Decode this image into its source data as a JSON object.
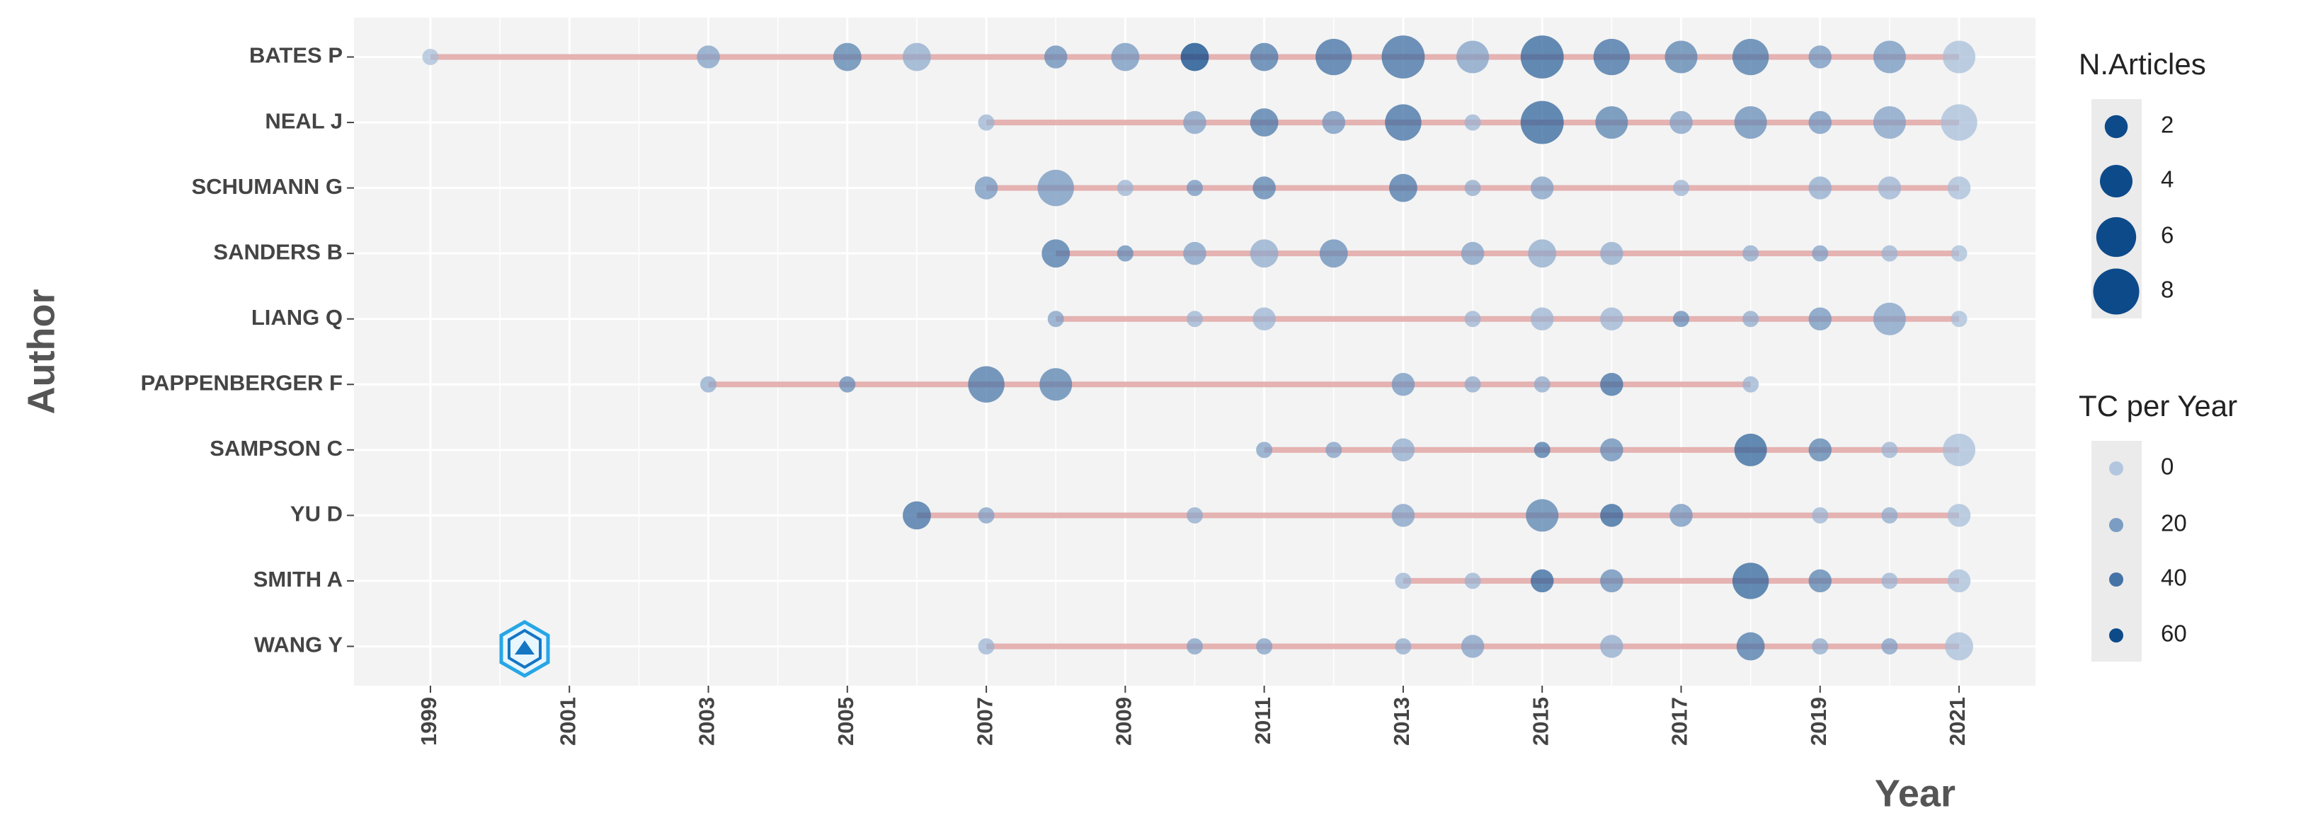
{
  "chart_data": {
    "type": "scatter",
    "y_label": "Author",
    "x_label": "Year",
    "xlim": [
      1997.9,
      2022.1
    ],
    "xticks": [
      1999,
      2001,
      2003,
      2005,
      2007,
      2009,
      2011,
      2013,
      2015,
      2017,
      2019,
      2021
    ],
    "grid": true,
    "line_color": "#e0a0a0",
    "color_range": [
      "#b3c6df",
      "#0d4a8a"
    ],
    "categories": [
      "BATES P",
      "NEAL J",
      "SCHUMANN G",
      "SANDERS B",
      "LIANG Q",
      "PAPPENBERGER F",
      "SAMPSON C",
      "YU D",
      "SMITH A",
      "WANG Y"
    ],
    "series": [
      {
        "name": "BATES P",
        "x": [
          1999,
          2003,
          2005,
          2006,
          2008,
          2009,
          2010,
          2011,
          2012,
          2013,
          2014,
          2015,
          2016,
          2017,
          2018,
          2019,
          2020,
          2021
        ],
        "articles": [
          1,
          2,
          3,
          3,
          2,
          3,
          3,
          3,
          5,
          7,
          4,
          7,
          5,
          4,
          5,
          2,
          4,
          4
        ],
        "tc_per_year": [
          5,
          20,
          35,
          15,
          30,
          25,
          65,
          40,
          45,
          45,
          20,
          50,
          45,
          35,
          40,
          25,
          25,
          5
        ]
      },
      {
        "name": "NEAL J",
        "x": [
          2007,
          2010,
          2011,
          2012,
          2013,
          2014,
          2015,
          2016,
          2017,
          2018,
          2019,
          2020,
          2021
        ],
        "articles": [
          1,
          2,
          3,
          2,
          5,
          1,
          7,
          4,
          2,
          4,
          2,
          4,
          5
        ],
        "tc_per_year": [
          10,
          20,
          40,
          25,
          45,
          10,
          50,
          35,
          20,
          30,
          25,
          20,
          5
        ]
      },
      {
        "name": "SCHUMANN G",
        "x": [
          2007,
          2008,
          2009,
          2010,
          2011,
          2013,
          2014,
          2015,
          2017,
          2019,
          2020,
          2021
        ],
        "articles": [
          2,
          5,
          1,
          1,
          2,
          3,
          1,
          2,
          1,
          2,
          2,
          2
        ],
        "tc_per_year": [
          25,
          25,
          10,
          25,
          35,
          40,
          15,
          20,
          10,
          15,
          10,
          5
        ]
      },
      {
        "name": "SANDERS B",
        "x": [
          2008,
          2009,
          2010,
          2011,
          2012,
          2014,
          2015,
          2016,
          2018,
          2019,
          2020,
          2021
        ],
        "articles": [
          3,
          1,
          2,
          3,
          3,
          2,
          3,
          2,
          1,
          1,
          1,
          1
        ],
        "tc_per_year": [
          40,
          30,
          20,
          15,
          30,
          20,
          15,
          15,
          15,
          20,
          10,
          5
        ]
      },
      {
        "name": "LIANG Q",
        "x": [
          2008,
          2010,
          2011,
          2014,
          2015,
          2016,
          2017,
          2018,
          2019,
          2020,
          2021
        ],
        "articles": [
          1,
          1,
          2,
          1,
          2,
          2,
          1,
          1,
          2,
          4,
          1
        ],
        "tc_per_year": [
          20,
          10,
          10,
          10,
          10,
          10,
          30,
          15,
          25,
          20,
          5
        ]
      },
      {
        "name": "PAPPENBERGER F",
        "x": [
          2003,
          2005,
          2007,
          2008,
          2013,
          2014,
          2015,
          2016,
          2018
        ],
        "articles": [
          1,
          1,
          5,
          4,
          2,
          1,
          1,
          2,
          1
        ],
        "tc_per_year": [
          15,
          30,
          40,
          35,
          25,
          15,
          15,
          45,
          10
        ]
      },
      {
        "name": "SAMPSON C",
        "x": [
          2011,
          2012,
          2013,
          2015,
          2016,
          2018,
          2019,
          2020,
          2021
        ],
        "articles": [
          1,
          1,
          2,
          1,
          2,
          4,
          2,
          1,
          4
        ],
        "tc_per_year": [
          20,
          20,
          15,
          40,
          30,
          50,
          35,
          10,
          5
        ]
      },
      {
        "name": "YU D",
        "x": [
          2006,
          2007,
          2010,
          2013,
          2015,
          2016,
          2017,
          2019,
          2020,
          2021
        ],
        "articles": [
          3,
          1,
          1,
          2,
          4,
          2,
          2,
          1,
          1,
          2
        ],
        "tc_per_year": [
          45,
          20,
          15,
          20,
          35,
          50,
          25,
          10,
          15,
          5
        ]
      },
      {
        "name": "SMITH A",
        "x": [
          2013,
          2014,
          2015,
          2016,
          2018,
          2019,
          2020,
          2021
        ],
        "articles": [
          1,
          1,
          2,
          2,
          5,
          2,
          1,
          2
        ],
        "tc_per_year": [
          10,
          10,
          50,
          30,
          50,
          35,
          10,
          5
        ]
      },
      {
        "name": "WANG Y",
        "x": [
          2007,
          2010,
          2011,
          2013,
          2014,
          2016,
          2018,
          2019,
          2020,
          2021
        ],
        "articles": [
          1,
          1,
          1,
          1,
          2,
          2,
          3,
          1,
          1,
          3
        ],
        "tc_per_year": [
          10,
          20,
          20,
          15,
          20,
          15,
          40,
          15,
          20,
          5
        ]
      }
    ],
    "size_legend": {
      "title": "N.Articles",
      "values": [
        2,
        4,
        6,
        8
      ]
    },
    "color_legend": {
      "title": "TC per Year",
      "values": [
        0,
        20,
        40,
        60
      ]
    }
  }
}
